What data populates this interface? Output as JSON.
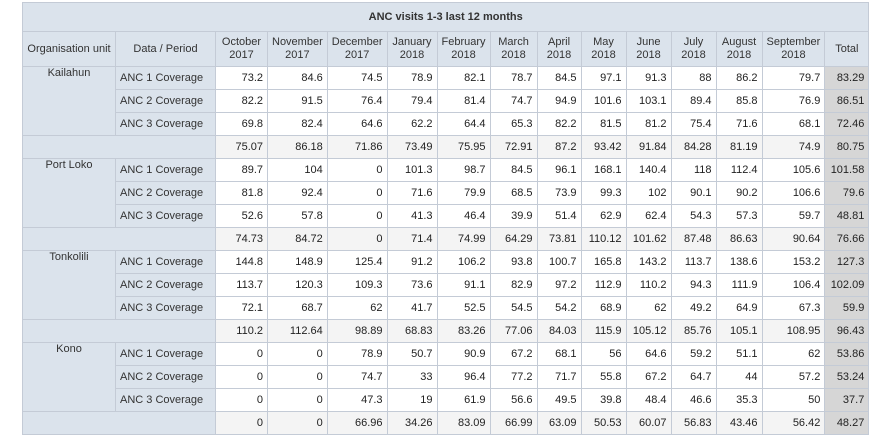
{
  "title": "ANC visits 1-3 last 12 months",
  "headers": {
    "unit": "Organisation unit",
    "period": "Data / Period",
    "months": [
      [
        "October",
        "2017"
      ],
      [
        "November",
        "2017"
      ],
      [
        "December",
        "2017"
      ],
      [
        "January",
        "2018"
      ],
      [
        "February",
        "2018"
      ],
      [
        "March",
        "2018"
      ],
      [
        "April",
        "2018"
      ],
      [
        "May",
        "2018"
      ],
      [
        "June",
        "2018"
      ],
      [
        "July",
        "2018"
      ],
      [
        "August",
        "2018"
      ],
      [
        "September",
        "2018"
      ]
    ],
    "total": "Total"
  },
  "groups": [
    {
      "unit": "Kailahun",
      "rows": [
        {
          "label": "ANC 1 Coverage",
          "values": [
            "73.2",
            "84.6",
            "74.5",
            "78.9",
            "82.1",
            "78.7",
            "84.5",
            "97.1",
            "91.3",
            "88",
            "86.2",
            "79.7"
          ],
          "total": "83.29"
        },
        {
          "label": "ANC 2 Coverage",
          "values": [
            "82.2",
            "91.5",
            "76.4",
            "79.4",
            "81.4",
            "74.7",
            "94.9",
            "101.6",
            "103.1",
            "89.4",
            "85.8",
            "76.9"
          ],
          "total": "86.51"
        },
        {
          "label": "ANC 3 Coverage",
          "values": [
            "69.8",
            "82.4",
            "64.6",
            "62.2",
            "64.4",
            "65.3",
            "82.2",
            "81.5",
            "81.2",
            "75.4",
            "71.6",
            "68.1"
          ],
          "total": "72.46"
        }
      ],
      "subtotal": {
        "values": [
          "75.07",
          "86.18",
          "71.86",
          "73.49",
          "75.95",
          "72.91",
          "87.2",
          "93.42",
          "91.84",
          "84.28",
          "81.19",
          "74.9"
        ],
        "total": "80.75"
      }
    },
    {
      "unit": "Port Loko",
      "rows": [
        {
          "label": "ANC 1 Coverage",
          "values": [
            "89.7",
            "104",
            "0",
            "101.3",
            "98.7",
            "84.5",
            "96.1",
            "168.1",
            "140.4",
            "118",
            "112.4",
            "105.6"
          ],
          "total": "101.58"
        },
        {
          "label": "ANC 2 Coverage",
          "values": [
            "81.8",
            "92.4",
            "0",
            "71.6",
            "79.9",
            "68.5",
            "73.9",
            "99.3",
            "102",
            "90.1",
            "90.2",
            "106.6"
          ],
          "total": "79.6"
        },
        {
          "label": "ANC 3 Coverage",
          "values": [
            "52.6",
            "57.8",
            "0",
            "41.3",
            "46.4",
            "39.9",
            "51.4",
            "62.9",
            "62.4",
            "54.3",
            "57.3",
            "59.7"
          ],
          "total": "48.81"
        }
      ],
      "subtotal": {
        "values": [
          "74.73",
          "84.72",
          "0",
          "71.4",
          "74.99",
          "64.29",
          "73.81",
          "110.12",
          "101.62",
          "87.48",
          "86.63",
          "90.64"
        ],
        "total": "76.66"
      }
    },
    {
      "unit": "Tonkolili",
      "rows": [
        {
          "label": "ANC 1 Coverage",
          "values": [
            "144.8",
            "148.9",
            "125.4",
            "91.2",
            "106.2",
            "93.8",
            "100.7",
            "165.8",
            "143.2",
            "113.7",
            "138.6",
            "153.2"
          ],
          "total": "127.3"
        },
        {
          "label": "ANC 2 Coverage",
          "values": [
            "113.7",
            "120.3",
            "109.3",
            "73.6",
            "91.1",
            "82.9",
            "97.2",
            "112.9",
            "110.2",
            "94.3",
            "111.9",
            "106.4"
          ],
          "total": "102.09"
        },
        {
          "label": "ANC 3 Coverage",
          "values": [
            "72.1",
            "68.7",
            "62",
            "41.7",
            "52.5",
            "54.5",
            "54.2",
            "68.9",
            "62",
            "49.2",
            "64.9",
            "67.3"
          ],
          "total": "59.9"
        }
      ],
      "subtotal": {
        "values": [
          "110.2",
          "112.64",
          "98.89",
          "68.83",
          "83.26",
          "77.06",
          "84.03",
          "115.9",
          "105.12",
          "85.76",
          "105.1",
          "108.95"
        ],
        "total": "96.43"
      }
    },
    {
      "unit": "Kono",
      "rows": [
        {
          "label": "ANC 1 Coverage",
          "values": [
            "0",
            "0",
            "78.9",
            "50.7",
            "90.9",
            "67.2",
            "68.1",
            "56",
            "64.6",
            "59.2",
            "51.1",
            "62"
          ],
          "total": "53.86"
        },
        {
          "label": "ANC 2 Coverage",
          "values": [
            "0",
            "0",
            "74.7",
            "33",
            "96.4",
            "77.2",
            "71.7",
            "55.8",
            "67.2",
            "64.7",
            "44",
            "57.2"
          ],
          "total": "53.24"
        },
        {
          "label": "ANC 3 Coverage",
          "values": [
            "0",
            "0",
            "47.3",
            "19",
            "61.9",
            "56.6",
            "49.5",
            "39.8",
            "48.4",
            "46.6",
            "35.3",
            "50"
          ],
          "total": "37.7"
        }
      ],
      "subtotal": {
        "values": [
          "0",
          "0",
          "66.96",
          "34.26",
          "83.09",
          "66.99",
          "63.09",
          "50.53",
          "60.07",
          "56.83",
          "43.46",
          "56.42"
        ],
        "total": "48.27"
      }
    }
  ]
}
